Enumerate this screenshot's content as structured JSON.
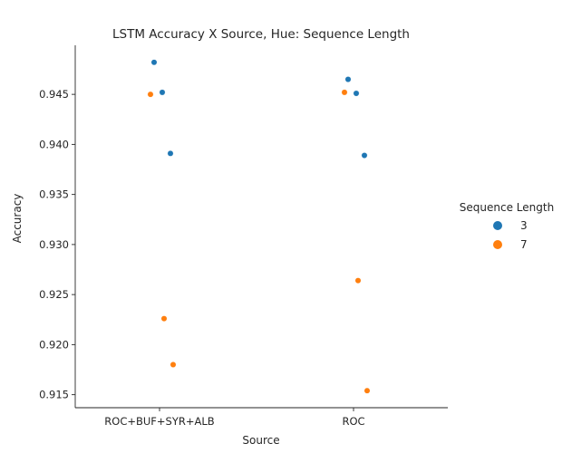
{
  "chart_data": {
    "type": "scatter",
    "title": "LSTM Accuracy X Source, Hue: Sequence Length",
    "xlabel": "Source",
    "ylabel": "Accuracy",
    "categories": [
      "ROC+BUF+SYR+ALB",
      "ROC"
    ],
    "ylim": [
      0.9137,
      0.9499
    ],
    "yticks": [
      0.915,
      0.92,
      0.925,
      0.93,
      0.935,
      0.94,
      0.945
    ],
    "ytick_labels": [
      "0.915",
      "0.920",
      "0.925",
      "0.930",
      "0.935",
      "0.940",
      "0.945"
    ],
    "grid": false,
    "legend": {
      "title": "Sequence Length",
      "placement": "right"
    },
    "series": [
      {
        "name": "3",
        "color": "#1f77b4",
        "points": [
          {
            "category": "ROC+BUF+SYR+ALB",
            "y": 0.9482
          },
          {
            "category": "ROC+BUF+SYR+ALB",
            "y": 0.9452
          },
          {
            "category": "ROC+BUF+SYR+ALB",
            "y": 0.9391
          },
          {
            "category": "ROC",
            "y": 0.9465
          },
          {
            "category": "ROC",
            "y": 0.9451
          },
          {
            "category": "ROC",
            "y": 0.9389
          }
        ]
      },
      {
        "name": "7",
        "color": "#ff7f0e",
        "points": [
          {
            "category": "ROC+BUF+SYR+ALB",
            "y": 0.945
          },
          {
            "category": "ROC+BUF+SYR+ALB",
            "y": 0.9226
          },
          {
            "category": "ROC+BUF+SYR+ALB",
            "y": 0.918
          },
          {
            "category": "ROC",
            "y": 0.9452
          },
          {
            "category": "ROC",
            "y": 0.9264
          },
          {
            "category": "ROC",
            "y": 0.9154
          }
        ]
      }
    ]
  }
}
